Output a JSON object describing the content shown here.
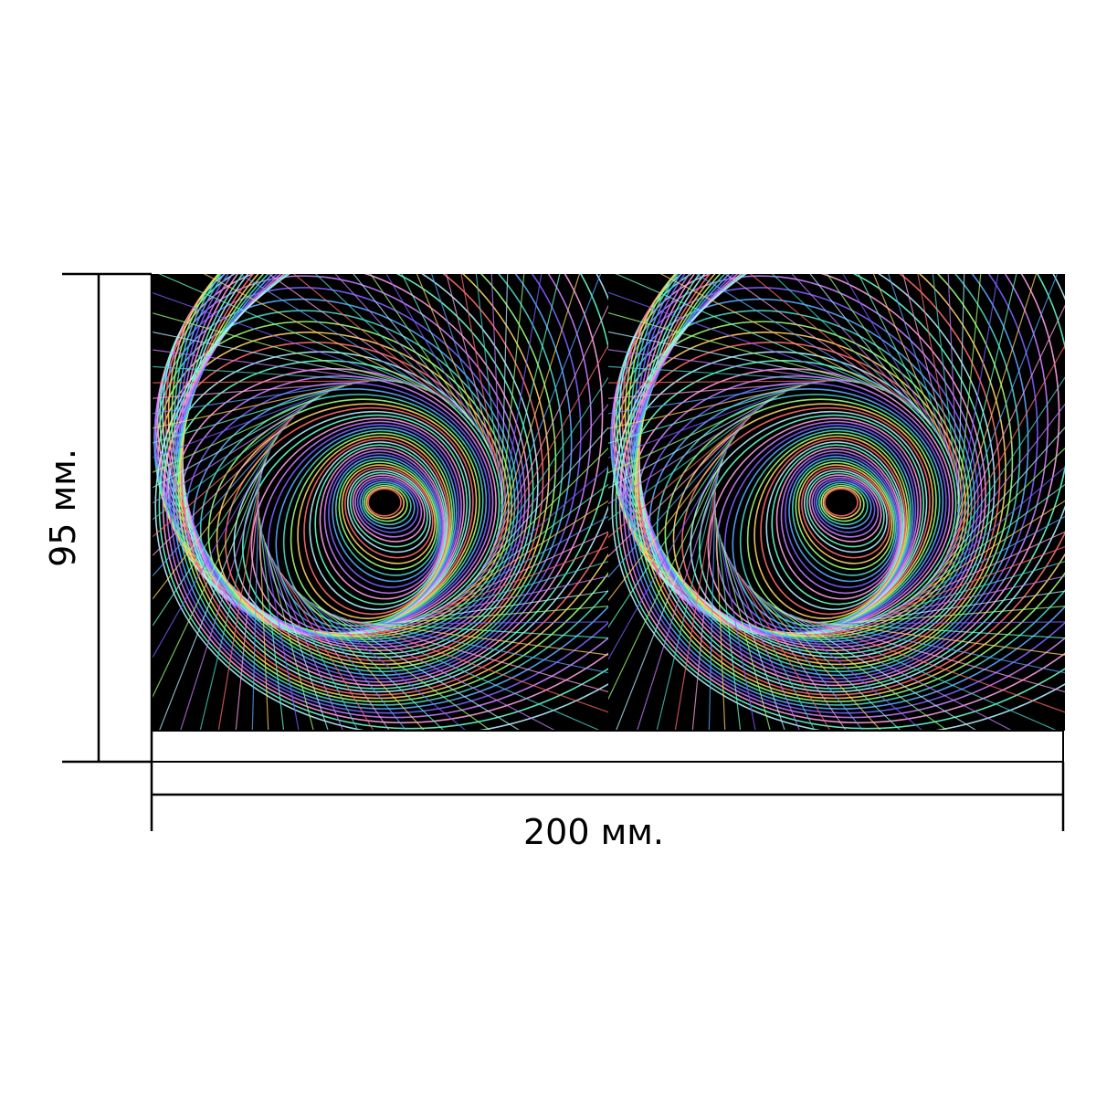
{
  "dimensions": {
    "height_label": "95 мм.",
    "width_label": "200 мм."
  },
  "artwork": {
    "tiles": [
      {
        "name": "spiral-tile-left"
      },
      {
        "name": "spiral-tile-right"
      }
    ],
    "background_color": "#000000",
    "palette": [
      "#ff6b6b",
      "#ffd166",
      "#9bff7a",
      "#4dd6c8",
      "#5aa9ff",
      "#7b61ff",
      "#c77dff",
      "#ff9ee5",
      "#66ffcc",
      "#b0f0ff"
    ]
  },
  "colors": {
    "line": "#000000",
    "page": "#ffffff",
    "strip": "#ffffff"
  }
}
